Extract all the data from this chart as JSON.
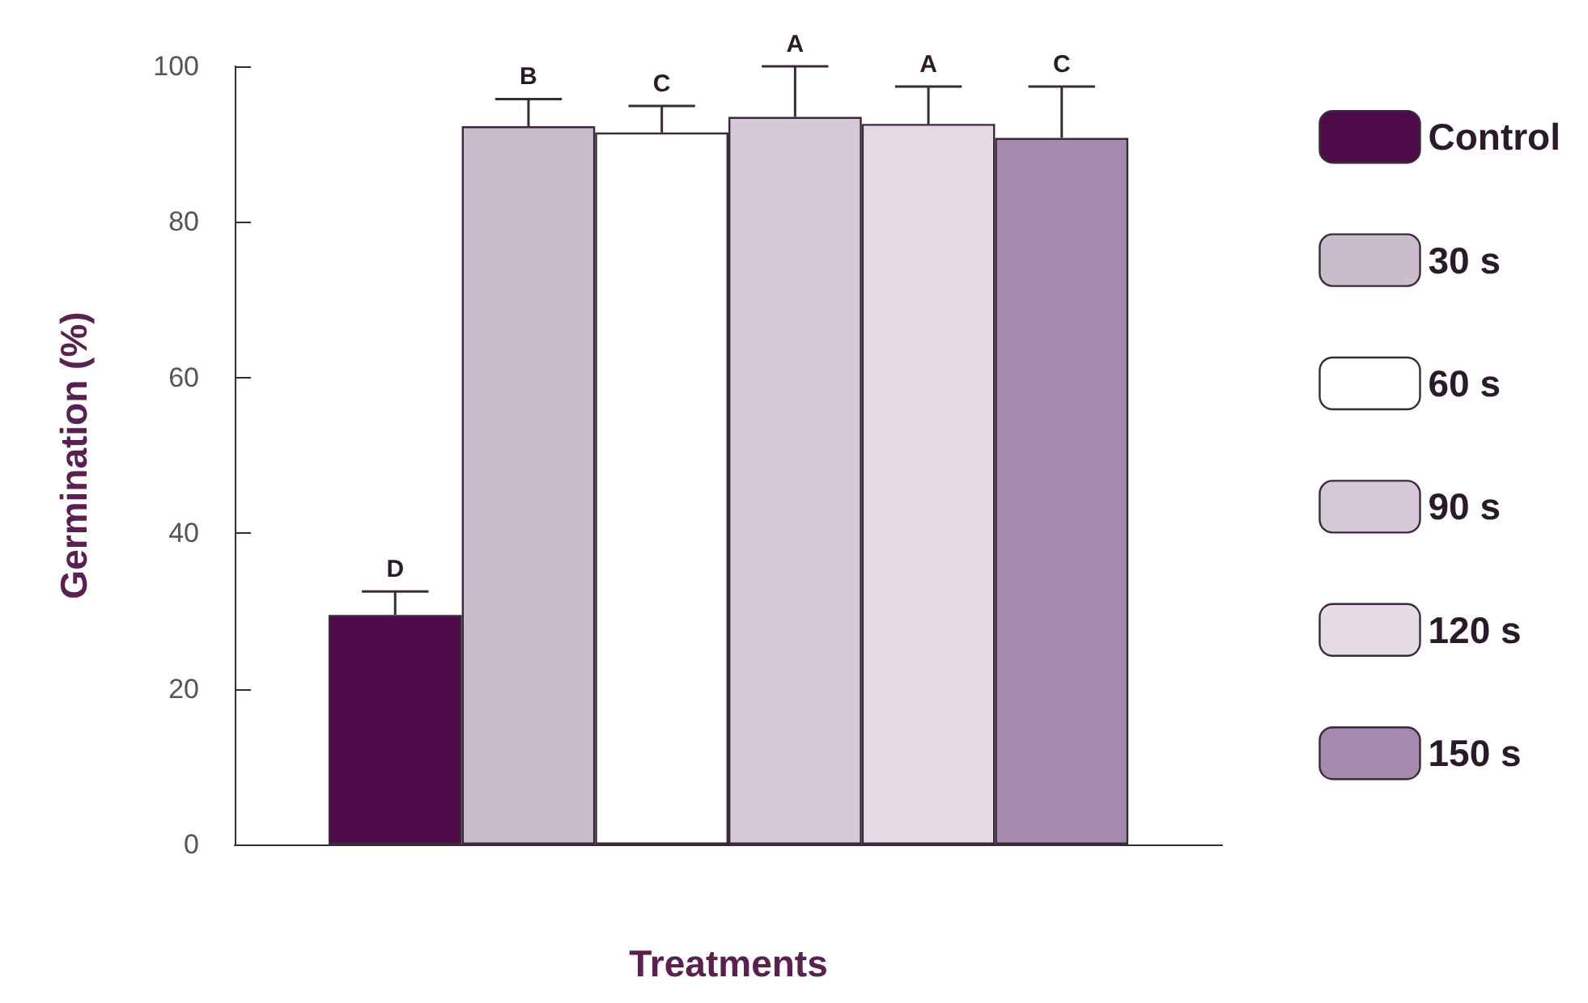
{
  "chart_data": {
    "type": "bar",
    "xlabel": "Treatments",
    "ylabel": "Germination (%)",
    "categories": [
      null
    ],
    "series": [
      {
        "name": "Control",
        "color": "#4f0a4a",
        "values": [
          29.5
        ],
        "errors": [
          [
            29.5,
            32.5
          ]
        ]
      },
      {
        "name": "30 s",
        "color": "#cbbccd",
        "values": [
          92.3
        ],
        "errors": [
          [
            92.3,
            95.8
          ]
        ]
      },
      {
        "name": "60 s",
        "color": "#ffffff",
        "values": [
          91.5
        ],
        "errors": [
          [
            91.5,
            94.9
          ]
        ]
      },
      {
        "name": "90 s",
        "color": "#d6c8d8",
        "values": [
          93.5
        ],
        "errors": [
          [
            93.5,
            100
          ]
        ]
      },
      {
        "name": "120 s",
        "color": "#e4dbe5",
        "values": [
          92.6
        ],
        "errors": [
          [
            92.6,
            97.4
          ]
        ]
      },
      {
        "name": "150 s",
        "color": "#a58aad",
        "values": [
          90.8
        ],
        "errors": [
          [
            90.8,
            97.4
          ]
        ]
      }
    ],
    "annotations": [
      "D",
      "B",
      "C",
      "A",
      "A",
      "C"
    ],
    "ylim": [
      0,
      100
    ],
    "yticks": [
      0,
      20,
      40,
      60,
      80,
      100
    ],
    "grid": false,
    "legend": "right"
  }
}
